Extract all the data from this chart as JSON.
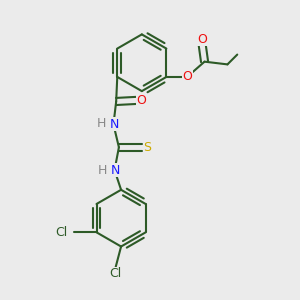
{
  "bg_color": "#ebebeb",
  "bond_color": "#2d5a27",
  "bond_width": 1.5,
  "atom_colors": {
    "C": "#2d5a27",
    "N": "#1a1aff",
    "O": "#ee1111",
    "S": "#ccaa00",
    "Cl": "#2d5a27",
    "H": "#888888"
  },
  "font_size": 9,
  "fig_size": [
    3.0,
    3.0
  ],
  "dpi": 100,
  "xlim": [
    -0.2,
    3.8
  ],
  "ylim": [
    -3.2,
    2.2
  ]
}
